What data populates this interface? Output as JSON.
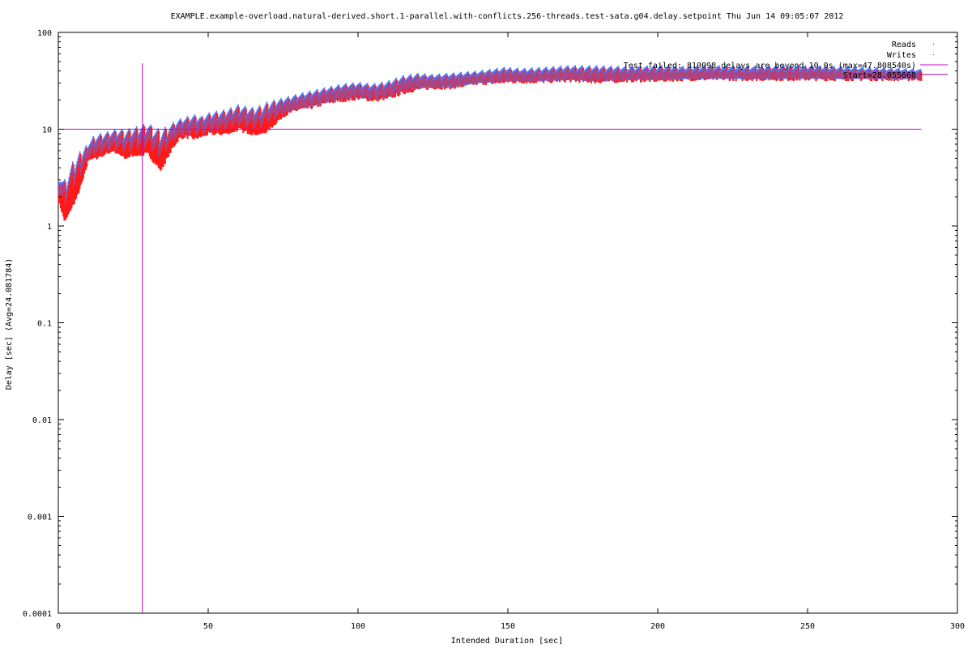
{
  "chart_data": {
    "type": "scatter",
    "title": "EXAMPLE.example-overload.natural-derived.short.1-parallel.with-conflicts.256-threads.test-sata.g04.delay.setpoint Thu Jun 14 09:05:07 2012",
    "xlabel": "Intended Duration [sec]",
    "ylabel": "Delay [sec]  (Avg=24.081784)",
    "xlim": [
      0,
      300
    ],
    "ylim": [
      0.0001,
      100
    ],
    "yscale": "log",
    "grid": false,
    "legend_position": "top-right",
    "x_ticks": [
      "0",
      "50",
      "100",
      "150",
      "200",
      "250",
      "300"
    ],
    "y_ticks": [
      "0.0001",
      "0.001",
      "0.01",
      "0.1",
      "1",
      "10",
      "100"
    ],
    "series": [
      {
        "name": "Reads",
        "color": "#0000ff",
        "marker": "dot"
      },
      {
        "name": "Writes",
        "color": "#ff0000",
        "marker": "dot"
      },
      {
        "name": "Test failed: 810098 delays are beyond 10.0s (max=47.808540s)",
        "color": "#cc00cc",
        "marker": "line"
      },
      {
        "name": "Start=28.055668",
        "color": "#880088",
        "marker": "line"
      }
    ],
    "threshold_delay": 10.0,
    "start_x": 28.055668,
    "max_delay": 47.80854,
    "envelope": {
      "x": [
        0,
        2,
        4,
        6,
        8,
        10,
        12,
        15,
        18,
        20,
        22,
        25,
        28,
        30,
        32,
        34,
        36,
        38,
        40,
        42,
        45,
        48,
        50,
        52,
        55,
        58,
        60,
        62,
        65,
        68,
        70,
        75,
        80,
        85,
        90,
        95,
        100,
        105,
        110,
        115,
        120,
        125,
        130,
        135,
        140,
        145,
        150,
        155,
        160,
        170,
        180,
        190,
        200,
        210,
        220,
        230,
        240,
        250,
        260,
        270,
        280,
        288
      ],
      "high": [
        3.8,
        3.0,
        4.0,
        5.0,
        6.0,
        7.0,
        8.5,
        9.0,
        9.5,
        10.0,
        9.8,
        10.2,
        11.0,
        11.5,
        10.5,
        10.0,
        10.5,
        11.0,
        12.0,
        12.5,
        13.5,
        13.0,
        14.0,
        14.5,
        15.0,
        16.0,
        17.0,
        16.5,
        16.0,
        17.0,
        18.5,
        20.0,
        22.0,
        24.0,
        26.0,
        28.0,
        29.0,
        28.0,
        30.0,
        34.0,
        36.0,
        35.0,
        36.0,
        37.0,
        38.0,
        40.0,
        42.0,
        41.0,
        42.0,
        44.0,
        44.0,
        43.0,
        44.0,
        43.0,
        44.0,
        43.0,
        44.0,
        44.0,
        43.0,
        42.0,
        41.0,
        40.0
      ],
      "low": [
        1.8,
        1.1,
        1.5,
        2.0,
        3.0,
        5.0,
        5.0,
        5.5,
        6.0,
        5.5,
        5.0,
        5.5,
        5.5,
        5.5,
        4.5,
        3.8,
        5.0,
        6.5,
        8.0,
        8.5,
        8.0,
        8.5,
        9.0,
        9.0,
        9.0,
        9.5,
        10.0,
        9.5,
        9.0,
        9.0,
        10.0,
        14.0,
        16.0,
        17.0,
        19.0,
        20.0,
        21.0,
        20.0,
        21.0,
        24.0,
        26.0,
        27.0,
        27.0,
        28.0,
        30.0,
        30.0,
        31.0,
        31.0,
        31.0,
        32.0,
        31.0,
        32.0,
        32.0,
        33.0,
        33.0,
        33.0,
        33.0,
        33.0,
        33.0,
        33.0,
        33.0,
        33.0
      ]
    }
  }
}
